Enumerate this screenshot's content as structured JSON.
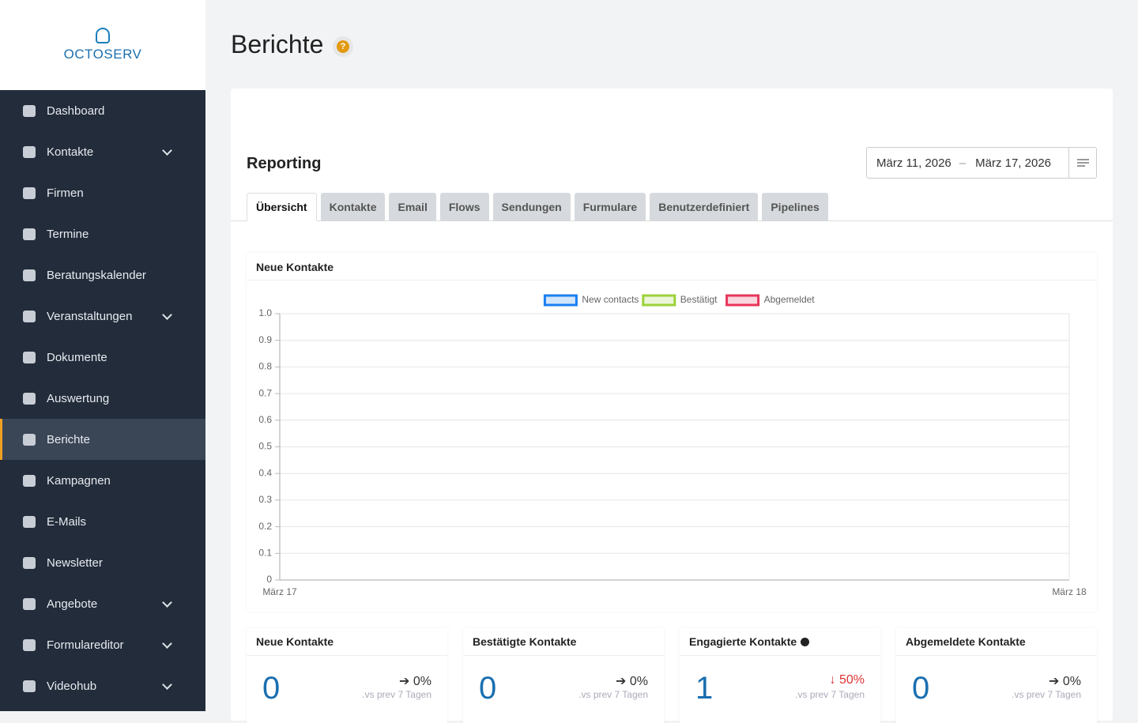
{
  "logo": "OCTOSERV",
  "sidebar": [
    {
      "label": "Dashboard",
      "expandable": false
    },
    {
      "label": "Kontakte",
      "expandable": true
    },
    {
      "label": "Firmen",
      "expandable": false
    },
    {
      "label": "Termine",
      "expandable": false
    },
    {
      "label": "Beratungskalender",
      "expandable": false
    },
    {
      "label": "Veranstaltungen",
      "expandable": true
    },
    {
      "label": "Dokumente",
      "expandable": false
    },
    {
      "label": "Auswertung",
      "expandable": false
    },
    {
      "label": "Berichte",
      "expandable": false,
      "active": true
    },
    {
      "label": "Kampagnen",
      "expandable": false
    },
    {
      "label": "E-Mails",
      "expandable": false
    },
    {
      "label": "Newsletter",
      "expandable": false
    },
    {
      "label": "Angebote",
      "expandable": true
    },
    {
      "label": "Formulareditor",
      "expandable": true
    },
    {
      "label": "Videohub",
      "expandable": true
    }
  ],
  "page_title": "Berichte",
  "help_icon": "?",
  "card": {
    "title": "Reporting",
    "date_range": {
      "start": "März 11, 2026",
      "separator": "–",
      "end": "März 17, 2026"
    },
    "tabs": [
      {
        "label": "Übersicht",
        "active": true
      },
      {
        "label": "Kontakte"
      },
      {
        "label": "Email"
      },
      {
        "label": "Flows"
      },
      {
        "label": "Sendungen"
      },
      {
        "label": "Furmulare"
      },
      {
        "label": "Benutzerdefiniert"
      },
      {
        "label": "Pipelines"
      }
    ]
  },
  "chart_data": {
    "type": "line",
    "title": "Neue Kontakte",
    "categories": [
      "März 17",
      "März 18"
    ],
    "series": [
      {
        "name": "New contacts",
        "color": "#1a7ff0",
        "values": [
          null,
          null
        ]
      },
      {
        "name": "Bestätigt",
        "color": "#9cd13a",
        "values": [
          null,
          null
        ]
      },
      {
        "name": "Abgemeldet",
        "color": "#e8345a",
        "values": [
          null,
          null
        ]
      }
    ],
    "ylim": [
      0,
      1
    ],
    "yticks": [
      0,
      0.1,
      0.2,
      0.3,
      0.4,
      0.5,
      0.6,
      0.7,
      0.8,
      0.9,
      {
        "value": 1,
        "label": "1.0"
      }
    ],
    "grid": true,
    "legend": "top"
  },
  "stats": [
    {
      "title": "Neue Kontakte",
      "value": 0,
      "change": "0%",
      "direction": "flat",
      "compare": ".vs prev 7 Tagen"
    },
    {
      "title": "Bestätigte Kontakte",
      "value": 0,
      "change": "0%",
      "direction": "flat",
      "compare": ".vs prev 7 Tagen"
    },
    {
      "title": "Engagierte Kontakte",
      "value": 1,
      "change": "50%",
      "direction": "down",
      "compare": ".vs prev 7 Tagen",
      "info": true
    },
    {
      "title": "Abgemeldete Kontakte",
      "value": 0,
      "change": "0%",
      "direction": "flat",
      "compare": ".vs prev 7 Tagen"
    }
  ]
}
